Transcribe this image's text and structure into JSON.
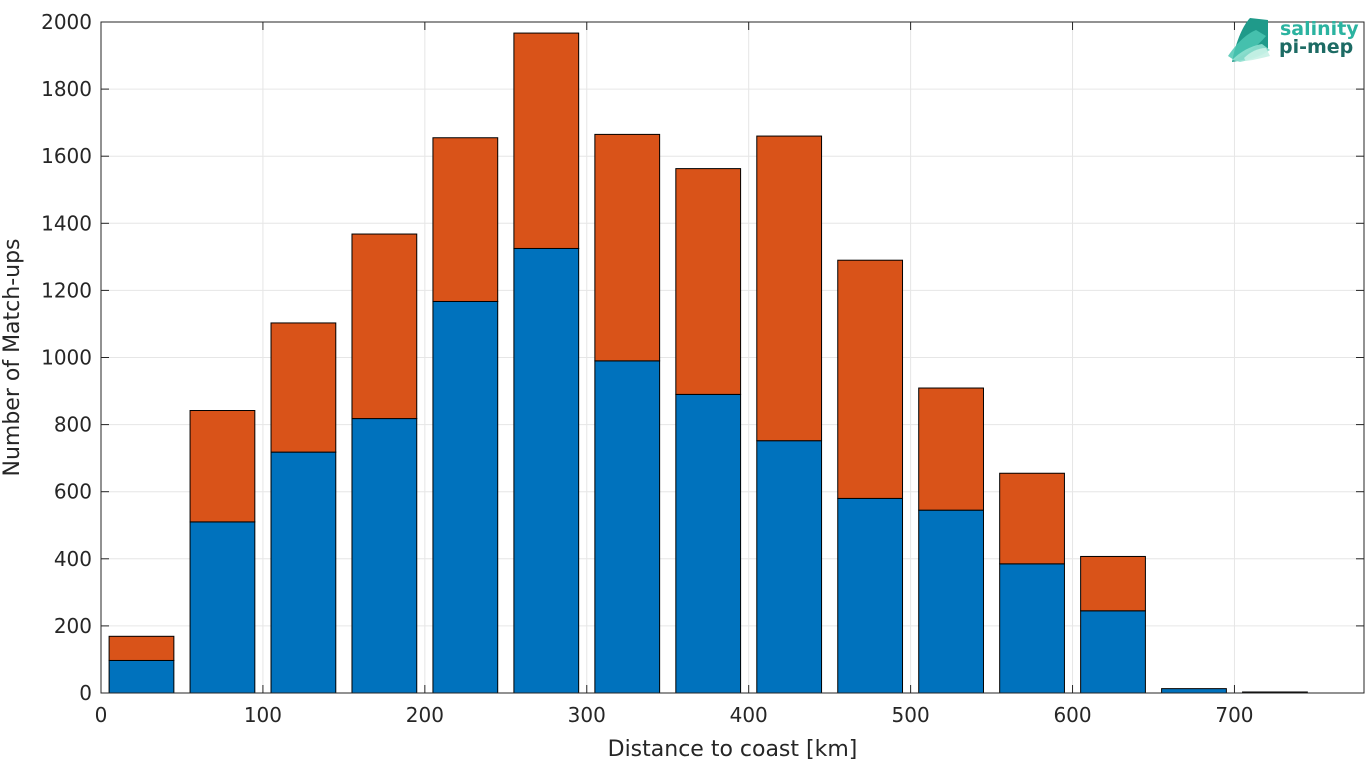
{
  "chart_data": {
    "type": "bar",
    "stacked": true,
    "bin_width": 40,
    "x": [
      25,
      75,
      125,
      175,
      225,
      275,
      325,
      375,
      425,
      475,
      525,
      575,
      625,
      675,
      725
    ],
    "series": [
      {
        "values": [
          97,
          510,
          718,
          818,
          1167,
          1325,
          990,
          890,
          752,
          580,
          545,
          385,
          245,
          13,
          0
        ],
        "color": "#0072BD"
      },
      {
        "values": [
          72,
          332,
          385,
          550,
          488,
          642,
          675,
          673,
          908,
          710,
          364,
          270,
          162,
          0,
          3
        ],
        "color": "#D95319"
      }
    ],
    "title": "",
    "xlabel": "Distance to coast [km]",
    "ylabel": "Number of Match-ups",
    "xlim": [
      0,
      780
    ],
    "ylim": [
      0,
      2000
    ],
    "xticks": [
      0,
      100,
      200,
      300,
      400,
      500,
      600,
      700
    ],
    "yticks": [
      0,
      200,
      400,
      600,
      800,
      1000,
      1200,
      1400,
      1600,
      1800,
      2000
    ],
    "grid": true
  },
  "logo": {
    "line1": "salinity",
    "line2": "pi-mep",
    "color1": "#2bb3a0",
    "color2": "#1d6b64"
  }
}
